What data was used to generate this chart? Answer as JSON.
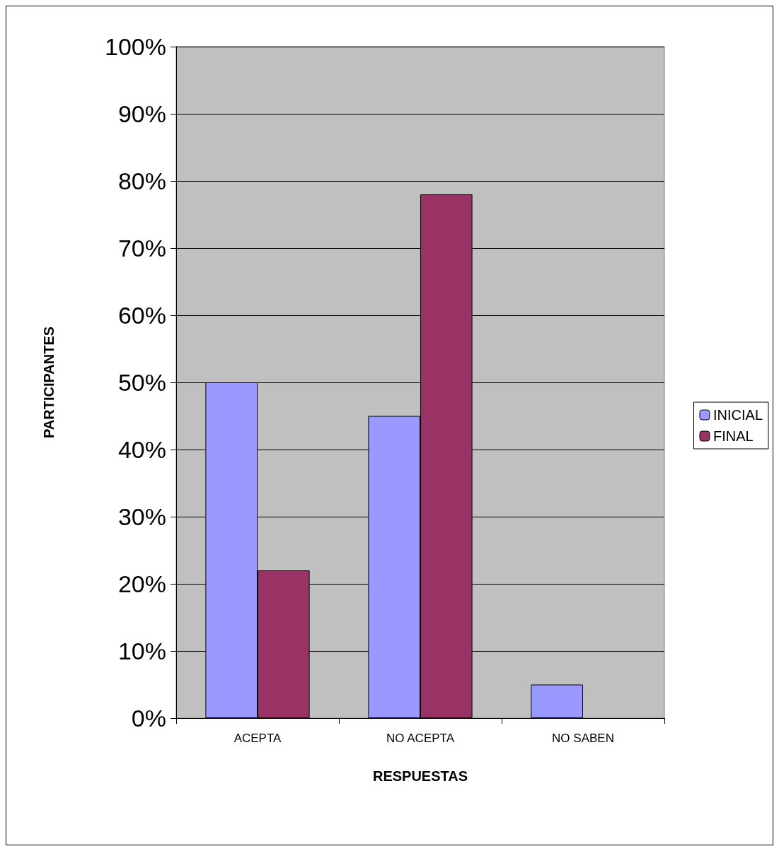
{
  "chart_data": {
    "type": "bar",
    "xlabel": "RESPUESTAS",
    "ylabel": "PARTICIPANTES",
    "categories": [
      "ACEPTA",
      "NO ACEPTA",
      "NO SABEN"
    ],
    "series": [
      {
        "name": "INICIAL",
        "color": "#9999ff",
        "values": [
          50,
          45,
          5
        ]
      },
      {
        "name": "FINAL",
        "color": "#993366",
        "values": [
          22,
          78,
          null
        ]
      }
    ],
    "ylim": [
      0,
      100
    ],
    "yticks": [
      {
        "value": 0,
        "label": "0%"
      },
      {
        "value": 10,
        "label": "10%"
      },
      {
        "value": 20,
        "label": "20%"
      },
      {
        "value": 30,
        "label": "30%"
      },
      {
        "value": 40,
        "label": "40%"
      },
      {
        "value": 50,
        "label": "50%"
      },
      {
        "value": 60,
        "label": "60%"
      },
      {
        "value": 70,
        "label": "70%"
      },
      {
        "value": 80,
        "label": "80%"
      },
      {
        "value": 90,
        "label": "90%"
      },
      {
        "value": 100,
        "label": "100%"
      }
    ],
    "grid": "y",
    "legend": "right"
  }
}
